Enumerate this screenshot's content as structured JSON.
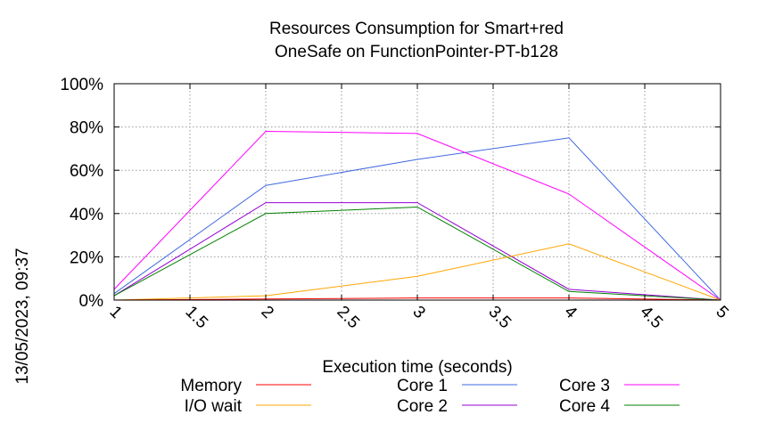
{
  "chart_data": {
    "type": "line",
    "title_lines": [
      "Resources Consumption for Smart+red",
      "OneSafe on FunctionPointer-PT-b128"
    ],
    "xlabel": "Execution time (seconds)",
    "ylabel": "",
    "timestamp": "13/05/2023, 09:37",
    "xlim": [
      1,
      5
    ],
    "ylim": [
      0,
      100
    ],
    "x_ticks": [
      1,
      1.5,
      2,
      2.5,
      3,
      3.5,
      4,
      4.5,
      5
    ],
    "x_tick_labels": [
      "1",
      "1.5",
      "2",
      "2.5",
      "3",
      "3.5",
      "4",
      "4.5",
      "5"
    ],
    "y_ticks": [
      0,
      20,
      40,
      60,
      80,
      100
    ],
    "y_tick_labels": [
      "0%",
      "20%",
      "40%",
      "60%",
      "80%",
      "100%"
    ],
    "grid": true,
    "legend_position": "bottom",
    "x": [
      1,
      2,
      3,
      4,
      5
    ],
    "series": [
      {
        "name": "Memory",
        "color": "#ff0000",
        "values": [
          0,
          0.5,
          1,
          1,
          0
        ]
      },
      {
        "name": "I/O wait",
        "color": "#ffa500",
        "values": [
          0,
          2,
          11,
          26,
          0
        ]
      },
      {
        "name": "Core 1",
        "color": "#4169e1",
        "values": [
          3,
          53,
          65,
          75,
          0
        ]
      },
      {
        "name": "Core 2",
        "color": "#9400d3",
        "values": [
          2,
          45,
          45,
          5,
          0
        ]
      },
      {
        "name": "Core 3",
        "color": "#ff00ff",
        "values": [
          5,
          78,
          77,
          49,
          0
        ]
      },
      {
        "name": "Core 4",
        "color": "#008000",
        "values": [
          2,
          40,
          43,
          4,
          0
        ]
      }
    ]
  }
}
